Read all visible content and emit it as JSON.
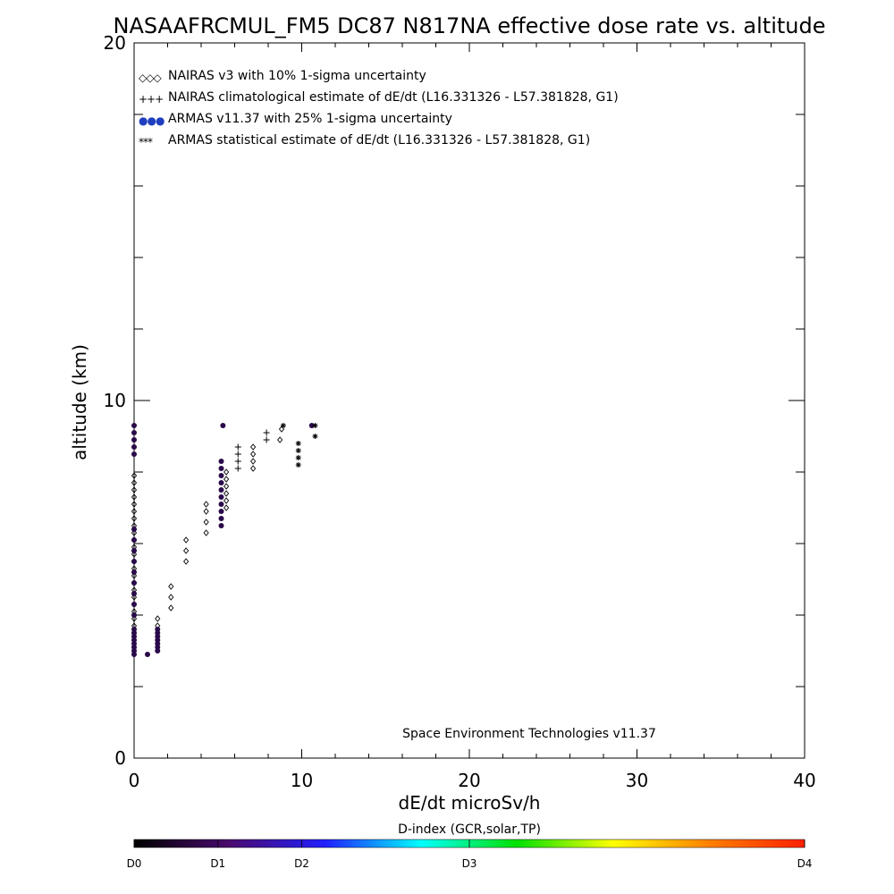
{
  "chart_data": {
    "type": "scatter",
    "title": "NASAAFRCMUL_FM5 DC87 N817NA effective dose rate vs. altitude",
    "xlabel": "dE/dt microSv/h",
    "ylabel": "altitude (km)",
    "xlim": [
      0,
      40
    ],
    "ylim": [
      0,
      20
    ],
    "x_ticks": [
      0,
      10,
      20,
      30,
      40
    ],
    "y_ticks": [
      0,
      10,
      20
    ],
    "grid": false,
    "legend_position": "top-left",
    "annotation": "Space Environment Technologies v11.37",
    "legend": [
      {
        "marker": "◇◇◇",
        "color": "#000000",
        "label": "NAIRAS v3 with 10% 1-sigma uncertainty"
      },
      {
        "marker": "+++",
        "color": "#000000",
        "label": "NAIRAS climatological estimate of dE/dt (L16.331326 - L57.381828, G1)"
      },
      {
        "marker": "●●●",
        "color": "#1f3fbf",
        "label": "ARMAS v11.37 with 25% 1-sigma uncertainty"
      },
      {
        "marker": "***",
        "color": "#000000",
        "label": "ARMAS statistical estimate of dE/dt (L16.331326 - L57.381828, G1)"
      }
    ],
    "series": [
      {
        "name": "NAIRAS v3 with 10% 1-sigma uncertainty",
        "marker": "diamond",
        "color": "#000000",
        "points": [
          [
            0.0,
            3.1
          ],
          [
            0.0,
            3.3
          ],
          [
            0.0,
            3.5
          ],
          [
            0.0,
            3.7
          ],
          [
            0.0,
            3.9
          ],
          [
            0.0,
            4.1
          ],
          [
            0.0,
            4.3
          ],
          [
            0.0,
            4.5
          ],
          [
            0.0,
            4.7
          ],
          [
            0.0,
            4.9
          ],
          [
            0.0,
            5.1
          ],
          [
            0.0,
            5.3
          ],
          [
            0.0,
            5.5
          ],
          [
            0.0,
            5.7
          ],
          [
            0.0,
            5.9
          ],
          [
            0.0,
            6.1
          ],
          [
            0.0,
            6.3
          ],
          [
            0.0,
            6.5
          ],
          [
            0.0,
            6.7
          ],
          [
            0.0,
            6.9
          ],
          [
            0.0,
            7.1
          ],
          [
            0.0,
            7.3
          ],
          [
            0.0,
            7.5
          ],
          [
            0.0,
            7.7
          ],
          [
            0.0,
            7.9
          ],
          [
            1.4,
            3.7
          ],
          [
            1.4,
            3.9
          ],
          [
            2.2,
            4.2
          ],
          [
            2.2,
            4.5
          ],
          [
            2.2,
            4.8
          ],
          [
            3.1,
            5.5
          ],
          [
            3.1,
            5.8
          ],
          [
            3.1,
            6.1
          ],
          [
            4.3,
            6.3
          ],
          [
            4.3,
            6.6
          ],
          [
            4.3,
            6.9
          ],
          [
            4.3,
            7.1
          ],
          [
            5.5,
            7.0
          ],
          [
            5.5,
            7.2
          ],
          [
            5.5,
            7.4
          ],
          [
            5.5,
            7.6
          ],
          [
            5.5,
            7.8
          ],
          [
            5.5,
            8.0
          ],
          [
            7.1,
            8.1
          ],
          [
            7.1,
            8.3
          ],
          [
            7.1,
            8.5
          ],
          [
            7.1,
            8.7
          ],
          [
            8.7,
            8.9
          ],
          [
            8.8,
            9.2
          ]
        ]
      },
      {
        "name": "NAIRAS climatological estimate of dE/dt (L16.331326 - L57.381828, G1)",
        "marker": "plus",
        "color": "#000000",
        "points": [
          [
            6.2,
            8.1
          ],
          [
            6.2,
            8.3
          ],
          [
            6.2,
            8.5
          ],
          [
            6.2,
            8.7
          ],
          [
            7.9,
            8.9
          ],
          [
            7.9,
            9.1
          ]
        ]
      },
      {
        "name": "ARMAS v11.37 with 25% 1-sigma uncertainty",
        "marker": "dot",
        "color": "#2a0a4a",
        "points": [
          [
            0.0,
            2.9
          ],
          [
            0.0,
            3.0
          ],
          [
            0.0,
            3.1
          ],
          [
            0.0,
            3.2
          ],
          [
            0.0,
            3.3
          ],
          [
            0.0,
            3.4
          ],
          [
            0.0,
            3.5
          ],
          [
            0.0,
            3.6
          ],
          [
            0.0,
            4.0
          ],
          [
            0.0,
            4.3
          ],
          [
            0.0,
            4.6
          ],
          [
            0.0,
            4.9
          ],
          [
            0.0,
            5.2
          ],
          [
            0.0,
            5.5
          ],
          [
            0.0,
            5.8
          ],
          [
            0.0,
            6.1
          ],
          [
            0.0,
            6.4
          ],
          [
            0.0,
            8.5
          ],
          [
            0.0,
            8.7
          ],
          [
            0.0,
            8.9
          ],
          [
            0.0,
            9.1
          ],
          [
            0.0,
            9.3
          ],
          [
            0.8,
            2.9
          ],
          [
            1.4,
            3.0
          ],
          [
            1.4,
            3.1
          ],
          [
            1.4,
            3.2
          ],
          [
            1.4,
            3.3
          ],
          [
            1.4,
            3.4
          ],
          [
            1.4,
            3.5
          ],
          [
            1.4,
            3.6
          ],
          [
            5.2,
            6.5
          ],
          [
            5.2,
            6.7
          ],
          [
            5.2,
            6.9
          ],
          [
            5.2,
            7.1
          ],
          [
            5.2,
            7.3
          ],
          [
            5.2,
            7.5
          ],
          [
            5.2,
            7.7
          ],
          [
            5.2,
            7.9
          ],
          [
            5.2,
            8.1
          ],
          [
            5.2,
            8.3
          ],
          [
            5.3,
            9.3
          ],
          [
            10.6,
            9.3
          ]
        ]
      },
      {
        "name": "ARMAS statistical estimate of dE/dt (L16.331326 - L57.381828, G1)",
        "marker": "asterisk",
        "color": "#000000",
        "points": [
          [
            8.9,
            9.3
          ],
          [
            9.8,
            8.2
          ],
          [
            9.8,
            8.4
          ],
          [
            9.8,
            8.6
          ],
          [
            9.8,
            8.8
          ],
          [
            10.8,
            9.0
          ],
          [
            10.8,
            9.3
          ]
        ]
      }
    ]
  },
  "colorbar": {
    "label": "D-index (GCR,solar,TP)",
    "stops": [
      "#000000",
      "#4a0a6e",
      "#2020ff",
      "#00ffff",
      "#00e000",
      "#ffff00",
      "#ff8000",
      "#ff2000"
    ],
    "ticks": [
      {
        "label": "D0",
        "value": 0
      },
      {
        "label": "D1",
        "value": 0.125
      },
      {
        "label": "D2",
        "value": 0.25
      },
      {
        "label": "D3",
        "value": 0.5
      },
      {
        "label": "D4",
        "value": 1
      }
    ]
  }
}
